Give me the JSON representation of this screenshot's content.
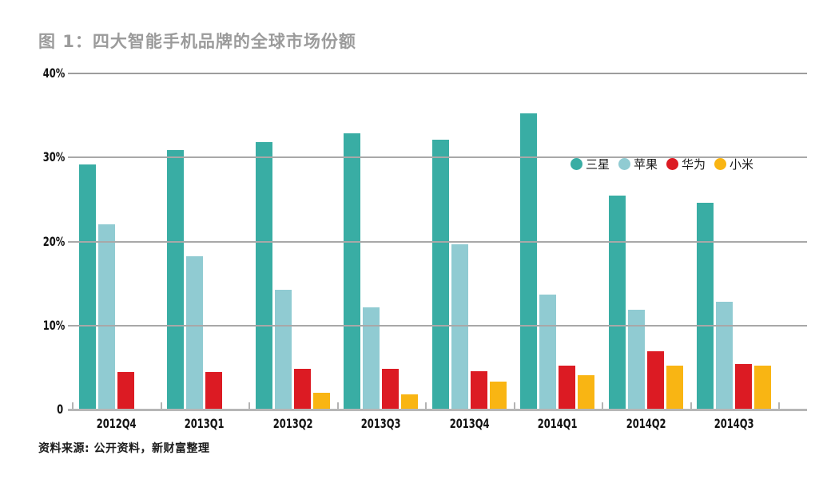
{
  "title": "图 1：四大智能手机品牌的全球市场份额",
  "source_note": "资料来源: 公开资料，新财富整理",
  "colors": {
    "samsung": "#39ada4",
    "apple": "#90cbd2",
    "huawei": "#dc1b23",
    "xiaomi": "#f9b513",
    "title_gray": "#9b9b9b",
    "gridline": "#a8a8a8",
    "axis_text": "#111111"
  },
  "chart_data": {
    "type": "bar",
    "title": "图 1：四大智能手机品牌的全球市场份额",
    "categories": [
      "2012Q4",
      "2013Q1",
      "2013Q2",
      "2013Q3",
      "2013Q4",
      "2014Q1",
      "2014Q2",
      "2014Q3"
    ],
    "series": [
      {
        "name": "三星",
        "color": "#39ada4",
        "values": [
          29.1,
          30.8,
          31.8,
          32.8,
          32.0,
          35.2,
          25.4,
          24.6
        ]
      },
      {
        "name": "苹果",
        "color": "#90cbd2",
        "values": [
          22.0,
          18.2,
          14.2,
          12.1,
          19.6,
          13.7,
          11.9,
          12.8
        ]
      },
      {
        "name": "华为",
        "color": "#dc1b23",
        "values": [
          4.5,
          4.5,
          4.8,
          4.8,
          4.6,
          5.2,
          6.9,
          5.4
        ]
      },
      {
        "name": "小米",
        "color": "#f9b513",
        "values": [
          null,
          null,
          2.0,
          1.8,
          3.3,
          4.1,
          5.2,
          5.2
        ]
      }
    ],
    "xlabel": "",
    "ylabel": "",
    "ylim": [
      0,
      40
    ],
    "yticks": [
      "40%",
      "30%",
      "20%",
      "10%",
      "0"
    ],
    "grid": true,
    "legend_position": "top-right",
    "unit": "percent"
  }
}
